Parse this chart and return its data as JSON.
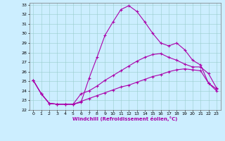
{
  "xlabel": "Windchill (Refroidissement éolien,°C)",
  "background_color": "#cceeff",
  "line_color": "#aa00aa",
  "xlim": [
    -0.5,
    23.5
  ],
  "ylim": [
    22,
    33.2
  ],
  "xticks": [
    0,
    1,
    2,
    3,
    4,
    5,
    6,
    7,
    8,
    9,
    10,
    11,
    12,
    13,
    14,
    15,
    16,
    17,
    18,
    19,
    20,
    21,
    22,
    23
  ],
  "yticks": [
    22,
    23,
    24,
    25,
    26,
    27,
    28,
    29,
    30,
    31,
    32,
    33
  ],
  "line1_x": [
    0,
    1,
    2,
    3,
    4,
    5,
    6,
    7,
    8,
    9,
    10,
    11,
    12,
    13,
    14,
    15,
    16,
    17,
    18,
    19,
    20,
    21,
    22,
    23
  ],
  "line1_y": [
    25.1,
    23.7,
    22.7,
    22.6,
    22.6,
    22.6,
    22.8,
    25.3,
    27.5,
    29.8,
    31.2,
    32.5,
    32.9,
    32.3,
    31.2,
    30.0,
    29.0,
    28.7,
    29.0,
    28.3,
    27.2,
    26.7,
    24.8,
    24.0
  ],
  "line2_x": [
    0,
    1,
    2,
    3,
    4,
    5,
    6,
    7,
    8,
    9,
    10,
    11,
    12,
    13,
    14,
    15,
    16,
    17,
    18,
    19,
    20,
    21,
    22,
    23
  ],
  "line2_y": [
    25.1,
    23.7,
    22.7,
    22.6,
    22.6,
    22.6,
    23.7,
    24.0,
    24.5,
    25.1,
    25.6,
    26.1,
    26.6,
    27.1,
    27.5,
    27.8,
    27.9,
    27.5,
    27.2,
    26.8,
    26.5,
    26.5,
    25.8,
    24.3
  ],
  "line3_x": [
    0,
    1,
    2,
    3,
    4,
    5,
    6,
    7,
    8,
    9,
    10,
    11,
    12,
    13,
    14,
    15,
    16,
    17,
    18,
    19,
    20,
    21,
    22,
    23
  ],
  "line3_y": [
    25.1,
    23.7,
    22.7,
    22.6,
    22.6,
    22.6,
    22.9,
    23.2,
    23.5,
    23.8,
    24.1,
    24.4,
    24.6,
    24.9,
    25.2,
    25.5,
    25.7,
    26.0,
    26.2,
    26.3,
    26.2,
    26.1,
    24.8,
    24.2
  ]
}
